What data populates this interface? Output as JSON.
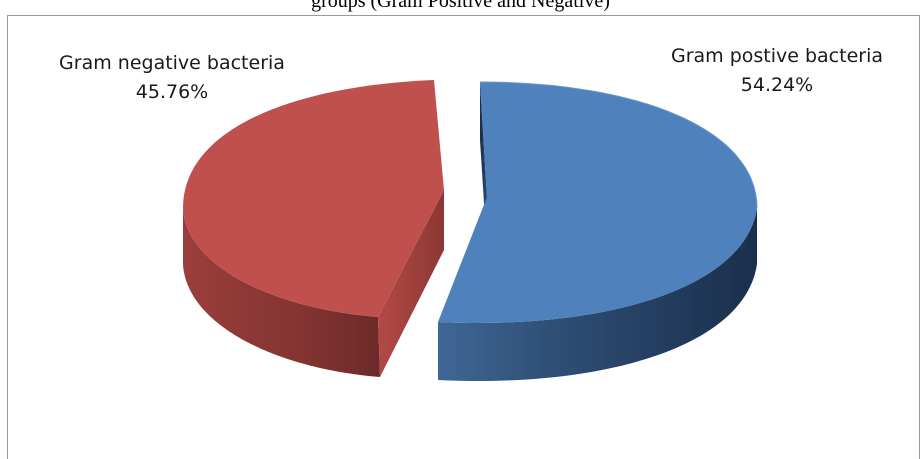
{
  "caption": "groups (Gram Positive and Negative)",
  "chart_data": {
    "type": "pie",
    "style": "3d-exploded",
    "title": "",
    "slices": [
      {
        "name": "Gram postive bacteria",
        "value": 54.24,
        "label": "54.24%",
        "color": "#4F81BD"
      },
      {
        "name": "Gram negative bacteria",
        "value": 45.76,
        "label": "45.76%",
        "color": "#C0504D"
      }
    ],
    "legend": "none"
  }
}
